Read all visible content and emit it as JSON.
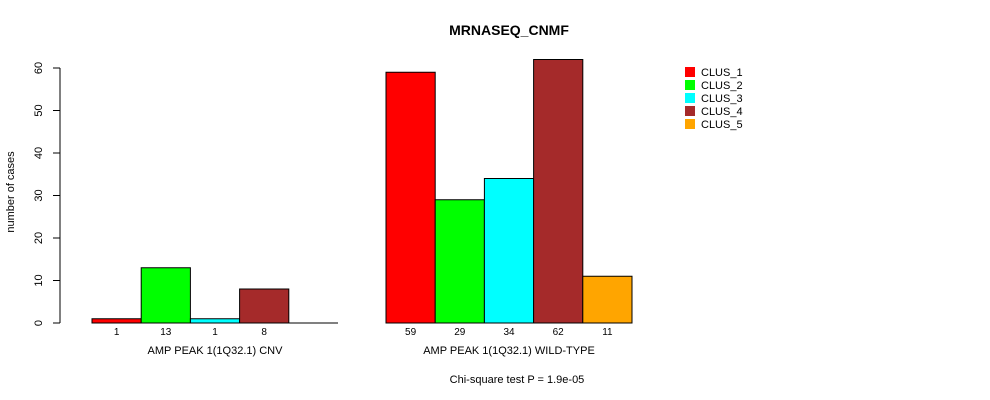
{
  "chart_data": {
    "type": "bar",
    "title": "MRNASEQ_CNMF",
    "ylabel": "number of cases",
    "ylim": [
      0,
      62
    ],
    "yticks": [
      0,
      10,
      20,
      30,
      40,
      50,
      60
    ],
    "groups": [
      "AMP PEAK  1(1Q32.1) CNV",
      "AMP PEAK  1(1Q32.1) WILD-TYPE"
    ],
    "series": [
      {
        "name": "CLUS_1",
        "color": "#ff0000",
        "values": [
          1,
          59
        ]
      },
      {
        "name": "CLUS_2",
        "color": "#00ff00",
        "values": [
          13,
          29
        ]
      },
      {
        "name": "CLUS_3",
        "color": "#00ffff",
        "values": [
          1,
          34
        ]
      },
      {
        "name": "CLUS_4",
        "color": "#a52a2a",
        "values": [
          8,
          62
        ]
      },
      {
        "name": "CLUS_5",
        "color": "#ffa500",
        "values": [
          0,
          11
        ]
      }
    ],
    "bar_labels": [
      [
        "1",
        "13",
        "1",
        "8",
        ""
      ],
      [
        "59",
        "29",
        "34",
        "62",
        "11"
      ]
    ],
    "legend_position": "top-right",
    "footnote": "Chi-square test P = 1.9e-05"
  }
}
